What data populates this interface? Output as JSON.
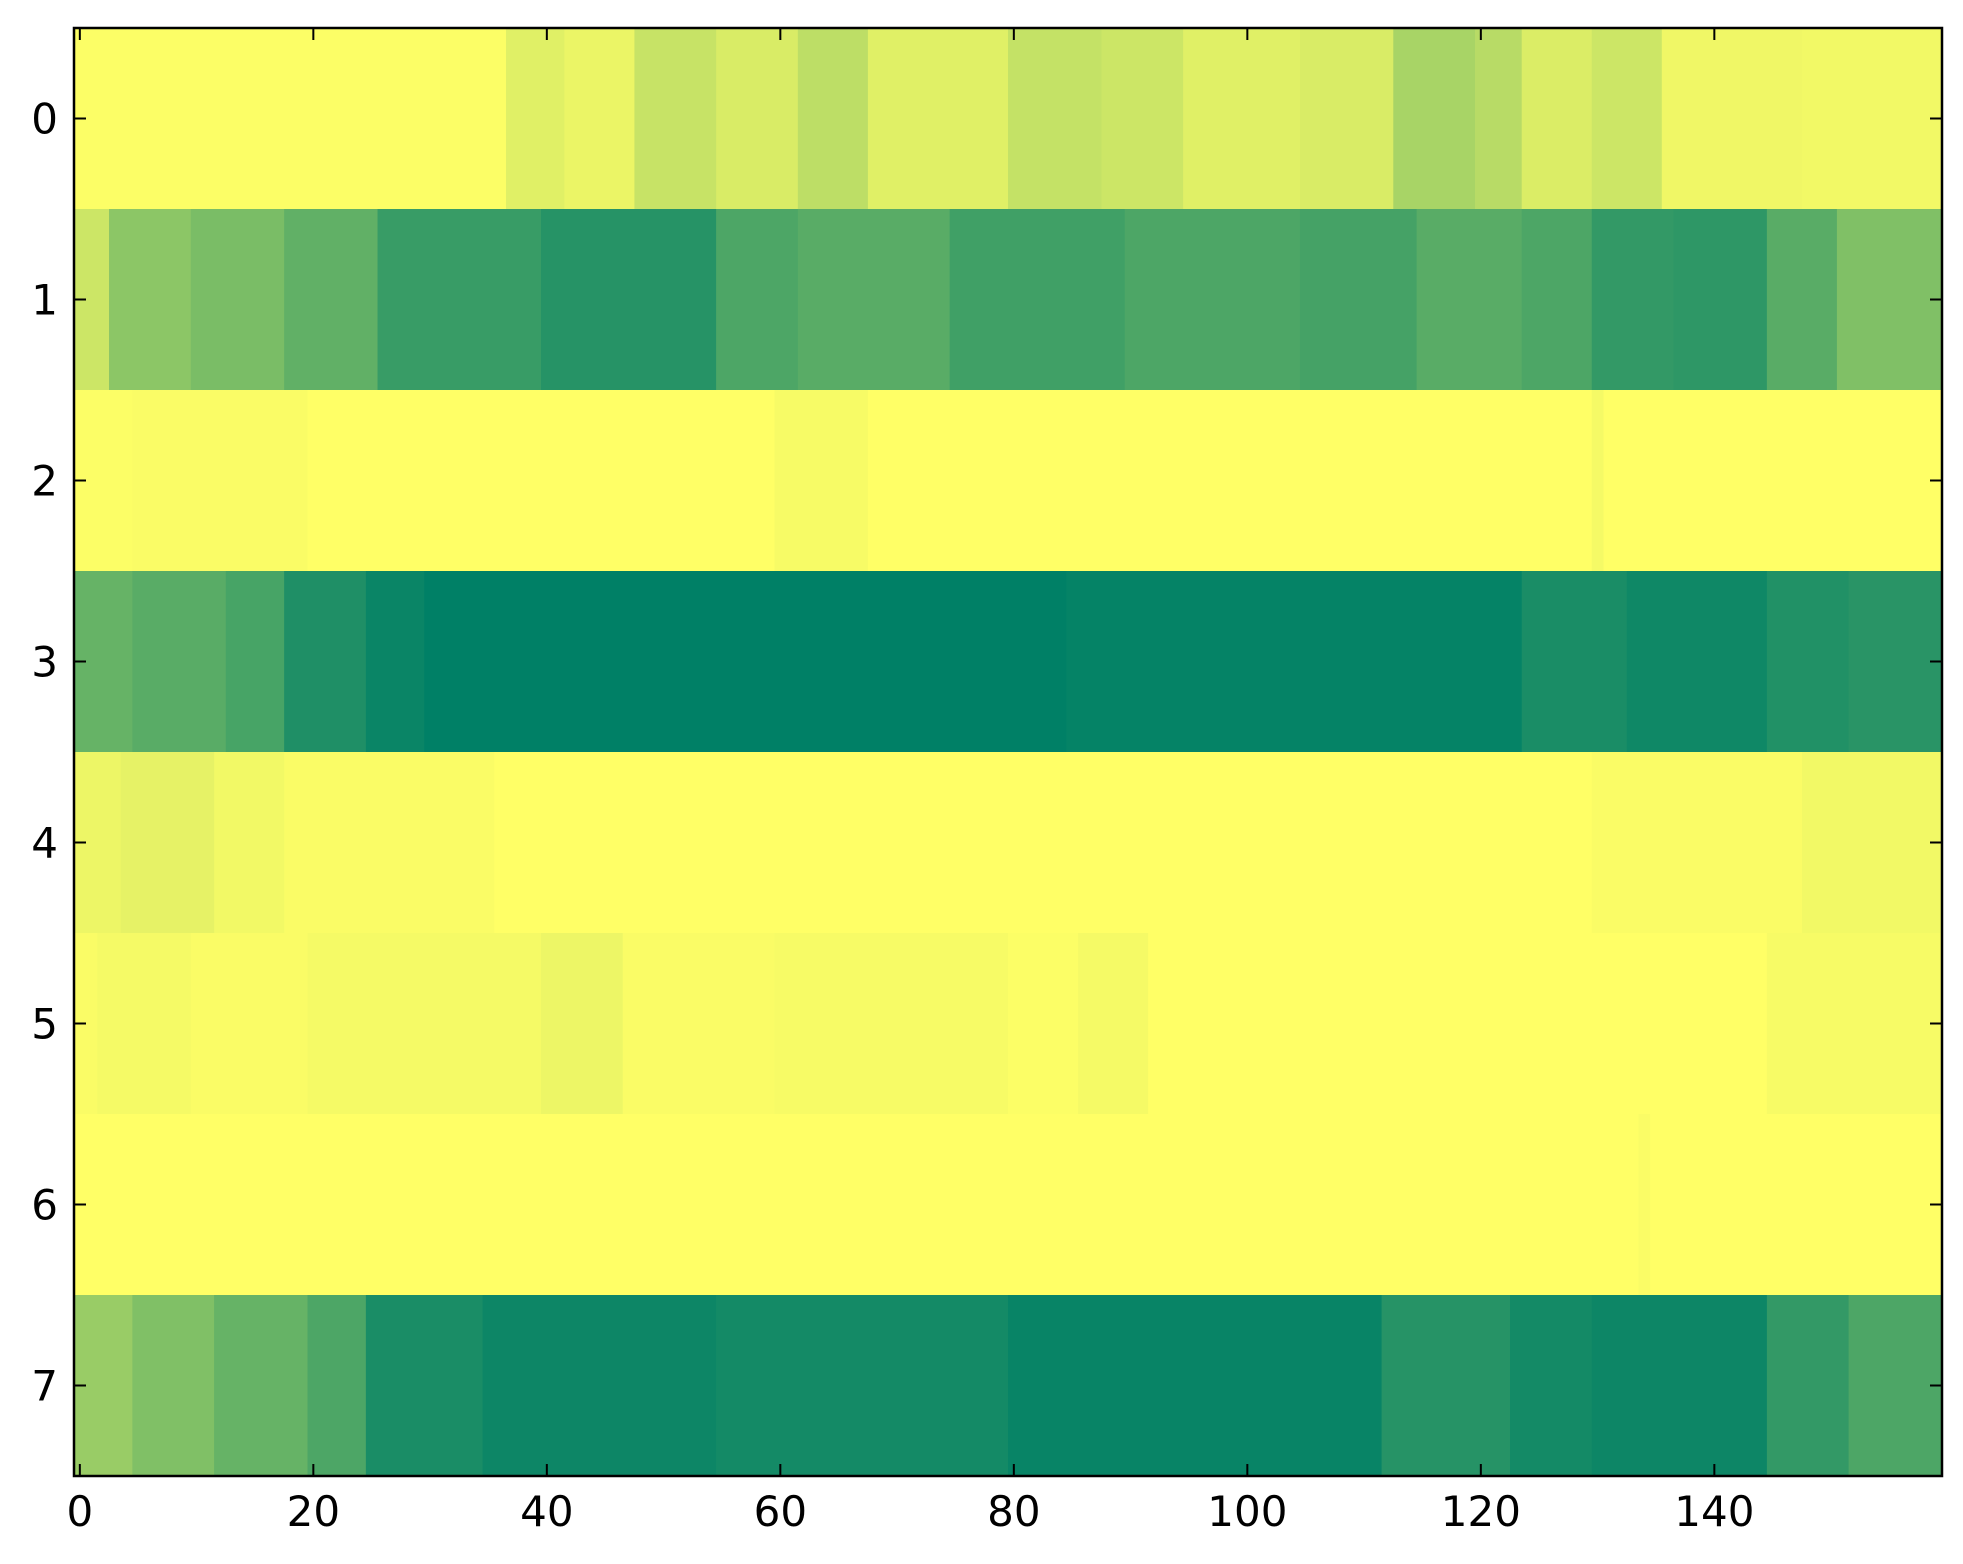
{
  "chart_data": {
    "type": "heatmap",
    "title": "",
    "xlabel": "",
    "ylabel": "",
    "colormap": "summer",
    "colormap_colors": [
      "#008066",
      "#ffff66"
    ],
    "value_range": [
      0,
      1
    ],
    "n_columns": 160,
    "xlim": [
      -0.5,
      159.5
    ],
    "ylim": [
      7.5,
      -0.5
    ],
    "x_ticks": [
      0,
      20,
      40,
      60,
      80,
      100,
      120,
      140
    ],
    "x_tick_labels": [
      "0",
      "20",
      "40",
      "60",
      "80",
      "100",
      "120",
      "140"
    ],
    "y_ticks": [
      0,
      1,
      2,
      3,
      4,
      5,
      6,
      7
    ],
    "y_tick_labels": [
      "0",
      "1",
      "2",
      "3",
      "4",
      "5",
      "6",
      "7"
    ],
    "grid": false,
    "rows": [
      {
        "row": 0,
        "segments": [
          [
            0,
            37,
            0.99
          ],
          [
            37,
            42,
            0.88
          ],
          [
            42,
            48,
            0.92
          ],
          [
            48,
            55,
            0.78
          ],
          [
            55,
            62,
            0.85
          ],
          [
            62,
            68,
            0.74
          ],
          [
            68,
            80,
            0.88
          ],
          [
            80,
            88,
            0.77
          ],
          [
            88,
            95,
            0.8
          ],
          [
            95,
            105,
            0.88
          ],
          [
            105,
            113,
            0.85
          ],
          [
            113,
            120,
            0.66
          ],
          [
            120,
            124,
            0.72
          ],
          [
            124,
            130,
            0.86
          ],
          [
            130,
            136,
            0.8
          ],
          [
            136,
            148,
            0.94
          ],
          [
            148,
            160,
            0.95
          ]
        ]
      },
      {
        "row": 1,
        "segments": [
          [
            0,
            3,
            0.8
          ],
          [
            3,
            10,
            0.55
          ],
          [
            10,
            18,
            0.48
          ],
          [
            18,
            26,
            0.38
          ],
          [
            26,
            40,
            0.22
          ],
          [
            40,
            55,
            0.15
          ],
          [
            55,
            62,
            0.3
          ],
          [
            62,
            75,
            0.35
          ],
          [
            75,
            90,
            0.25
          ],
          [
            90,
            105,
            0.3
          ],
          [
            105,
            115,
            0.27
          ],
          [
            115,
            124,
            0.35
          ],
          [
            124,
            130,
            0.3
          ],
          [
            130,
            137,
            0.2
          ],
          [
            137,
            145,
            0.18
          ],
          [
            145,
            151,
            0.35
          ],
          [
            151,
            160,
            0.5
          ]
        ]
      },
      {
        "row": 2,
        "segments": [
          [
            0,
            5,
            0.99
          ],
          [
            5,
            20,
            0.98
          ],
          [
            20,
            60,
            1.0
          ],
          [
            60,
            68,
            0.97
          ],
          [
            68,
            130,
            1.0
          ],
          [
            130,
            131,
            0.96
          ],
          [
            131,
            160,
            1.0
          ]
        ]
      },
      {
        "row": 3,
        "segments": [
          [
            0,
            5,
            0.4
          ],
          [
            5,
            13,
            0.35
          ],
          [
            13,
            18,
            0.28
          ],
          [
            18,
            25,
            0.12
          ],
          [
            25,
            30,
            0.04
          ],
          [
            30,
            85,
            0.0
          ],
          [
            85,
            124,
            0.02
          ],
          [
            124,
            133,
            0.1
          ],
          [
            133,
            145,
            0.06
          ],
          [
            145,
            152,
            0.13
          ],
          [
            152,
            160,
            0.16
          ]
        ]
      },
      {
        "row": 4,
        "segments": [
          [
            0,
            4,
            0.93
          ],
          [
            4,
            12,
            0.9
          ],
          [
            12,
            18,
            0.95
          ],
          [
            18,
            36,
            0.98
          ],
          [
            36,
            130,
            1.0
          ],
          [
            130,
            148,
            0.98
          ],
          [
            148,
            160,
            0.95
          ]
        ]
      },
      {
        "row": 5,
        "segments": [
          [
            0,
            2,
            0.98
          ],
          [
            2,
            10,
            0.96
          ],
          [
            10,
            20,
            0.98
          ],
          [
            20,
            40,
            0.96
          ],
          [
            40,
            47,
            0.93
          ],
          [
            47,
            60,
            0.98
          ],
          [
            60,
            80,
            0.97
          ],
          [
            80,
            86,
            0.99
          ],
          [
            86,
            92,
            0.96
          ],
          [
            92,
            145,
            1.0
          ],
          [
            145,
            160,
            0.97
          ]
        ]
      },
      {
        "row": 6,
        "segments": [
          [
            0,
            134,
            1.0
          ],
          [
            134,
            135,
            0.98
          ],
          [
            135,
            160,
            1.0
          ]
        ]
      },
      {
        "row": 7,
        "segments": [
          [
            0,
            5,
            0.6
          ],
          [
            5,
            12,
            0.5
          ],
          [
            12,
            20,
            0.4
          ],
          [
            20,
            25,
            0.3
          ],
          [
            25,
            35,
            0.1
          ],
          [
            35,
            55,
            0.05
          ],
          [
            55,
            80,
            0.08
          ],
          [
            80,
            112,
            0.03
          ],
          [
            112,
            123,
            0.15
          ],
          [
            123,
            130,
            0.08
          ],
          [
            130,
            145,
            0.05
          ],
          [
            145,
            152,
            0.2
          ],
          [
            152,
            160,
            0.3
          ]
        ]
      }
    ]
  }
}
